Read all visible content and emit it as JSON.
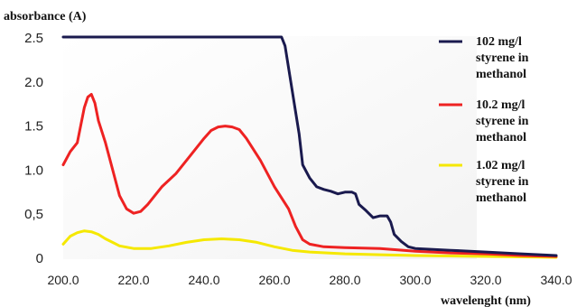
{
  "chart_data": {
    "type": "line",
    "ylabel": "absorbance (A)",
    "xlabel": "wavelenght (nm)",
    "xlim": [
      200,
      340
    ],
    "ylim": [
      0,
      2.5
    ],
    "x_ticks": [
      "200.0",
      "220.0",
      "240.0",
      "260.0",
      "280.0",
      "300.0",
      "320.0",
      "340.0"
    ],
    "y_ticks": [
      "0",
      "0,5",
      "1.0",
      "1.5",
      "2.0",
      "2.5"
    ],
    "grid": false,
    "legend_position": "right",
    "series": [
      {
        "name_lines": [
          "102 mg/l",
          "styrene in",
          "methanol"
        ],
        "color": "#1a1a4e",
        "x": [
          200,
          262,
          263,
          265,
          267,
          268,
          270,
          272,
          274,
          276,
          278,
          280,
          282,
          283,
          284,
          286,
          288,
          290,
          292,
          293,
          294,
          296,
          298,
          300,
          310,
          320,
          330,
          340
        ],
        "y": [
          2.5,
          2.5,
          2.4,
          1.9,
          1.4,
          1.05,
          0.9,
          0.8,
          0.77,
          0.75,
          0.72,
          0.74,
          0.74,
          0.72,
          0.6,
          0.53,
          0.45,
          0.47,
          0.47,
          0.4,
          0.26,
          0.18,
          0.12,
          0.1,
          0.08,
          0.06,
          0.04,
          0.02
        ]
      },
      {
        "name_lines": [
          "10.2 mg/l",
          "styrene in",
          "methanol"
        ],
        "color": "#ee2222",
        "x": [
          200,
          202,
          204,
          205,
          206,
          207,
          208,
          209,
          210,
          212,
          214,
          216,
          218,
          220,
          222,
          224,
          228,
          232,
          236,
          240,
          242,
          244,
          246,
          248,
          250,
          252,
          256,
          260,
          264,
          266,
          268,
          270,
          274,
          280,
          290,
          300,
          310,
          320,
          330,
          340
        ],
        "y": [
          1.05,
          1.2,
          1.3,
          1.5,
          1.7,
          1.82,
          1.85,
          1.75,
          1.55,
          1.3,
          1.0,
          0.7,
          0.55,
          0.5,
          0.52,
          0.6,
          0.8,
          0.95,
          1.15,
          1.35,
          1.44,
          1.48,
          1.49,
          1.48,
          1.45,
          1.35,
          1.1,
          0.8,
          0.55,
          0.35,
          0.2,
          0.15,
          0.12,
          0.11,
          0.1,
          0.07,
          0.05,
          0.04,
          0.02,
          0.01
        ]
      },
      {
        "name_lines": [
          "1.02 mg/l",
          "styrene in",
          "methanol"
        ],
        "color": "#f5e800",
        "x": [
          200,
          202,
          204,
          206,
          208,
          210,
          212,
          216,
          220,
          225,
          230,
          235,
          240,
          245,
          250,
          255,
          260,
          265,
          270,
          275,
          280,
          290,
          300,
          320,
          340
        ],
        "y": [
          0.15,
          0.24,
          0.28,
          0.3,
          0.29,
          0.26,
          0.21,
          0.13,
          0.1,
          0.1,
          0.13,
          0.17,
          0.2,
          0.21,
          0.2,
          0.17,
          0.12,
          0.08,
          0.06,
          0.05,
          0.04,
          0.03,
          0.02,
          0.01,
          0.0
        ]
      }
    ]
  }
}
